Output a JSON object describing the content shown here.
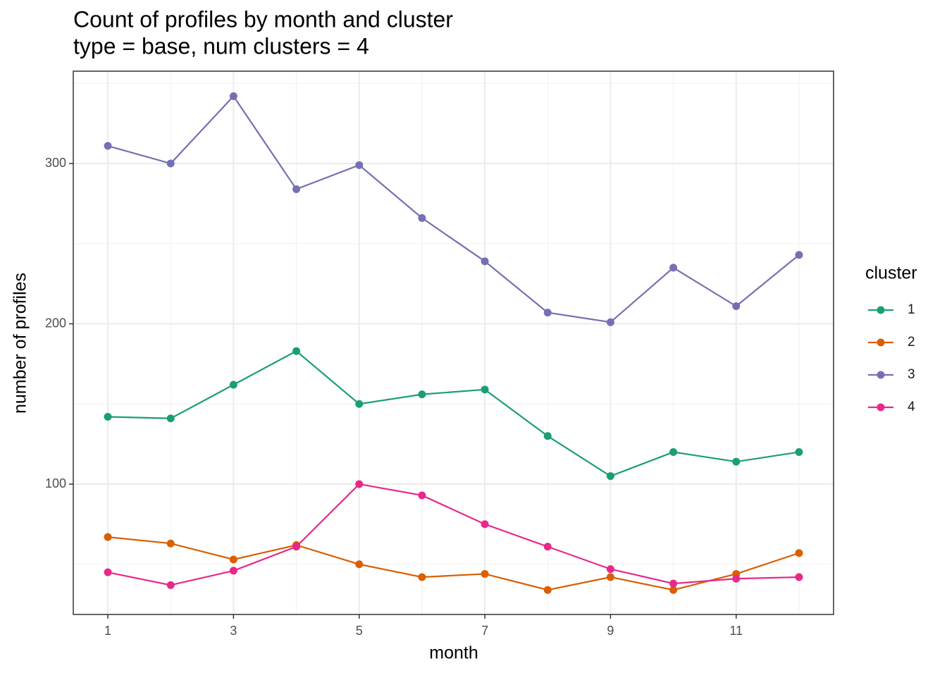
{
  "chart_data": {
    "type": "line",
    "title": "Count of profiles by month and cluster",
    "subtitle": "type = base, num clusters = 4",
    "x_label": "month",
    "y_label": "number of profiles",
    "x": [
      1,
      2,
      3,
      4,
      5,
      6,
      7,
      8,
      9,
      10,
      11,
      12
    ],
    "xlim": [
      0.45,
      12.55
    ],
    "xticks": [
      1,
      3,
      5,
      7,
      9,
      11
    ],
    "ylim": [
      18.7,
      357.6
    ],
    "yticks": [
      100,
      200,
      300
    ],
    "grid": true,
    "legend_position": "right",
    "legend_title": "cluster",
    "series": [
      {
        "name": "1",
        "color": "#1b9e77",
        "values": [
          142,
          141,
          162,
          183,
          150,
          156,
          159,
          130,
          105,
          120,
          114,
          120
        ]
      },
      {
        "name": "2",
        "color": "#d95f02",
        "values": [
          67,
          63,
          53,
          62,
          50,
          42,
          44,
          34,
          42,
          34,
          44,
          57
        ]
      },
      {
        "name": "3",
        "color": "#7570b3",
        "values": [
          311,
          300,
          342,
          284,
          299,
          266,
          239,
          207,
          201,
          235,
          211,
          243
        ]
      },
      {
        "name": "4",
        "color": "#e7298a",
        "values": [
          45,
          37,
          46,
          61,
          100,
          93,
          75,
          61,
          47,
          38,
          41,
          42
        ]
      }
    ]
  }
}
